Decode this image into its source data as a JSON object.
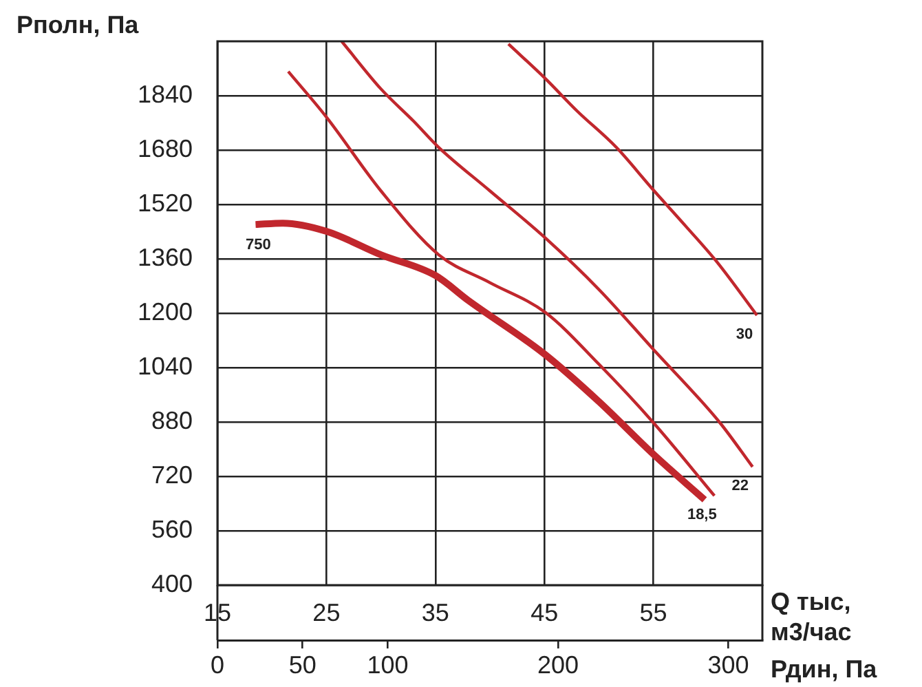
{
  "chart_data": {
    "type": "line",
    "ylabel": "Рполн, Па",
    "xlabel": "Q тыс, м3/час",
    "x2label": "Рдин, Па",
    "xlim": [
      15,
      65
    ],
    "xticks": [
      15,
      25,
      35,
      45,
      55
    ],
    "x2lim": [
      0,
      320
    ],
    "x2ticks": [
      0,
      50,
      100,
      200,
      300
    ],
    "ylim": [
      400,
      2000
    ],
    "yticks": [
      400,
      560,
      720,
      880,
      1040,
      1200,
      1360,
      1520,
      1680,
      1840
    ],
    "grid": true,
    "legend": false,
    "marker": "none",
    "line_style": "solid",
    "series": [
      {
        "color": "#c1272d",
        "x": [
          18.5,
          21,
          25,
          30,
          35,
          38,
          45,
          50,
          55,
          59.7
        ],
        "values": [
          1461,
          1465,
          1441,
          1372,
          1311,
          1238,
          1080,
          940,
          785,
          651
        ]
      },
      {
        "name": "18,5",
        "color": "#c1272d",
        "x": [
          21.5,
          25,
          30,
          35.3,
          40,
          45.1,
          50,
          55,
          60.6
        ],
        "values": [
          1911,
          1777,
          1560,
          1372,
          1290,
          1202,
          1050,
          878,
          663
        ]
      },
      {
        "name": "22",
        "color": "#c1272d",
        "x": [
          26.4,
          30,
          33,
          35.3,
          40,
          45.1,
          50,
          54.9,
          61.1,
          64.1
        ],
        "values": [
          2000,
          1860,
          1765,
          1688,
          1560,
          1421,
          1270,
          1097,
          878,
          748
        ]
      },
      {
        "name": "30",
        "color": "#c1272d",
        "x": [
          41.7,
          45.1,
          48,
          51.6,
          54.9,
          58,
          60.8,
          64.5
        ],
        "values": [
          1992,
          1890,
          1795,
          1688,
          1566,
          1455,
          1352,
          1194
        ]
      }
    ],
    "annotations": [
      "750"
    ]
  }
}
